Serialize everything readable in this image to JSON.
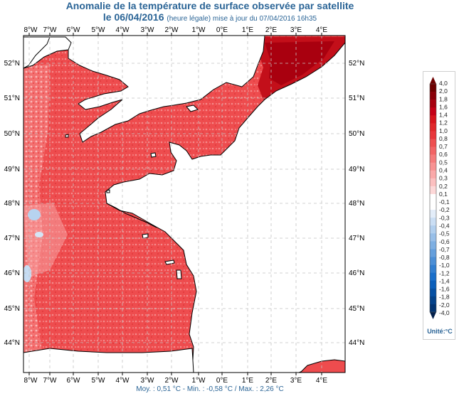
{
  "header": {
    "title": "Anomalie de la température de surface observée par satellite",
    "date_label": "le 06/04/2016",
    "date_note": "(heure légale) mise à jour du 07/04/2016 16h35"
  },
  "map": {
    "lon_labels": [
      "8°W",
      "7°W",
      "6°W",
      "5°W",
      "4°W",
      "3°W",
      "2°W",
      "1°W",
      "0°E",
      "1°E",
      "2°E",
      "3°E",
      "4°E"
    ],
    "lat_labels_left": [
      "52°N",
      "51°N",
      "50°N",
      "49°N",
      "48°N",
      "47°N",
      "46°N",
      "45°N",
      "44°N"
    ],
    "lat_labels_right": [
      "52°N",
      "51°N",
      "50°N",
      "49°N",
      "48°N",
      "47°N",
      "46°N",
      "45°N",
      "44°N"
    ],
    "colors": {
      "land": "#ffffff",
      "coast": "#000000",
      "grid": "#bcbcbc",
      "warm": "#e8363a",
      "cool": "#9cc4ea"
    }
  },
  "legend": {
    "values": [
      "4,0",
      "2,0",
      "1,8",
      "1,6",
      "1,4",
      "1,2",
      "1,0",
      "0,8",
      "0,7",
      "0,6",
      "0,5",
      "0,4",
      "0,3",
      "0,2",
      "0,1",
      "-0,1",
      "-0,2",
      "-0,3",
      "-0,4",
      "-0,5",
      "-0,6",
      "-0,7",
      "-0,8",
      "-1,0",
      "-1,2",
      "-1,4",
      "-1,6",
      "-1,8",
      "-2,0",
      "-4,0"
    ],
    "colors": [
      "#6e0000",
      "#8a0009",
      "#a7000f",
      "#c50016",
      "#d7141c",
      "#e0272a",
      "#e8363a",
      "#ee4f50",
      "#f26465",
      "#f57b7b",
      "#f89292",
      "#faa9a9",
      "#fcc0c0",
      "#fdd8d8",
      "#ffffff",
      "#ffffff",
      "#e3edf9",
      "#cadef4",
      "#b1cfee",
      "#98bfe8",
      "#7eafe2",
      "#659fdc",
      "#4c8fd6",
      "#327fd0",
      "#1a6fca",
      "#0b5fbb",
      "#0650a3",
      "#04428a",
      "#023472"
    ],
    "unit": "Unité:°C"
  },
  "footer": {
    "stats": "Moy. : 0,51 °C   -   Min. : -0,58 °C / Max. : 2,26 °C"
  }
}
